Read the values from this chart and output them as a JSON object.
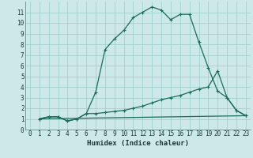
{
  "title": "",
  "xlabel": "Humidex (Indice chaleur)",
  "bg_color": "#cce8e8",
  "grid_color": "#99cccc",
  "line_color": "#1a6b5a",
  "xlim": [
    -0.5,
    23.5
  ],
  "ylim": [
    0,
    12
  ],
  "xticks": [
    0,
    1,
    2,
    3,
    4,
    5,
    6,
    7,
    8,
    9,
    10,
    11,
    12,
    13,
    14,
    15,
    16,
    17,
    18,
    19,
    20,
    21,
    22,
    23
  ],
  "yticks": [
    0,
    1,
    2,
    3,
    4,
    5,
    6,
    7,
    8,
    9,
    10,
    11
  ],
  "line1_x": [
    1,
    2,
    3,
    4,
    5,
    6,
    7,
    8,
    9,
    10,
    11,
    12,
    13,
    14,
    15,
    16,
    17,
    18,
    19,
    20,
    21,
    22,
    23
  ],
  "line1_y": [
    1.0,
    1.2,
    1.2,
    0.8,
    1.0,
    1.5,
    3.5,
    7.5,
    8.5,
    9.3,
    10.5,
    11.0,
    11.5,
    11.2,
    10.3,
    10.8,
    10.8,
    8.2,
    5.8,
    3.6,
    3.0,
    1.8,
    1.3
  ],
  "line2_x": [
    1,
    2,
    3,
    4,
    5,
    6,
    7,
    8,
    9,
    10,
    11,
    12,
    13,
    14,
    15,
    16,
    17,
    18,
    19,
    20,
    21,
    22,
    23
  ],
  "line2_y": [
    1.0,
    1.2,
    1.2,
    0.8,
    1.0,
    1.5,
    1.5,
    1.6,
    1.7,
    1.8,
    2.0,
    2.2,
    2.5,
    2.8,
    3.0,
    3.2,
    3.5,
    3.8,
    4.0,
    5.5,
    3.0,
    1.8,
    1.3
  ],
  "line3_x": [
    1,
    23
  ],
  "line3_y": [
    1.0,
    1.3
  ],
  "marker_size": 3,
  "linewidth": 0.9,
  "tick_fontsize": 5.5,
  "xlabel_fontsize": 6.5
}
